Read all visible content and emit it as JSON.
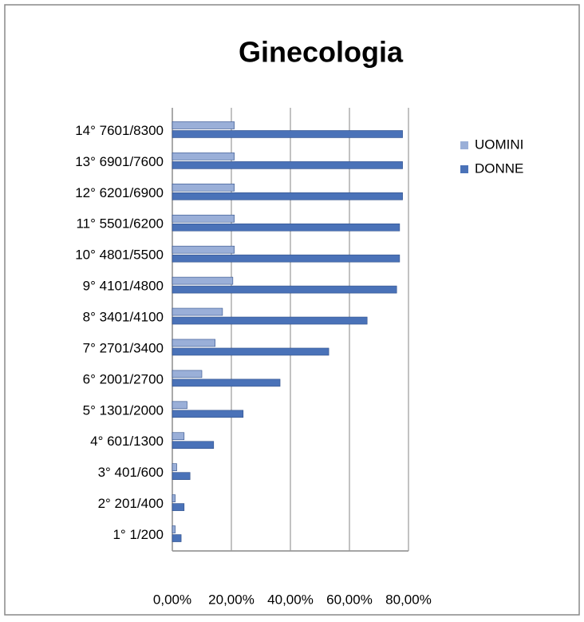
{
  "chart_data": {
    "type": "hbar",
    "title": "Ginecologia",
    "categories": [
      "1° 1/200",
      "2° 201/400",
      "3° 401/600",
      "4° 601/1300",
      "5° 1301/2000",
      "6° 2001/2700",
      "7° 2701/3400",
      "8° 3401/4100",
      "9° 4101/4800",
      "10° 4801/5500",
      "11° 5501/6200",
      "12° 6201/6900",
      "13° 6901/7600",
      "14° 7601/8300"
    ],
    "series": [
      {
        "name": "UOMINI",
        "color": "#9aafd8",
        "values": [
          1,
          1,
          1.5,
          4,
          5,
          10,
          14.5,
          17,
          20.5,
          21,
          21,
          21,
          21,
          21
        ]
      },
      {
        "name": "DONNE",
        "color": "#4a72b8",
        "values": [
          3,
          4,
          6,
          14,
          24,
          36.5,
          53,
          66,
          76,
          77,
          77,
          78,
          78,
          78
        ]
      }
    ],
    "xlim": [
      0,
      80
    ],
    "xticks": [
      {
        "value": 0,
        "label": "0,00%"
      },
      {
        "value": 20,
        "label": "20,00%"
      },
      {
        "value": 40,
        "label": "40,00%"
      },
      {
        "value": 60,
        "label": "60,00%"
      },
      {
        "value": 80,
        "label": "80,00%"
      }
    ],
    "grid": true,
    "legend": "right"
  }
}
